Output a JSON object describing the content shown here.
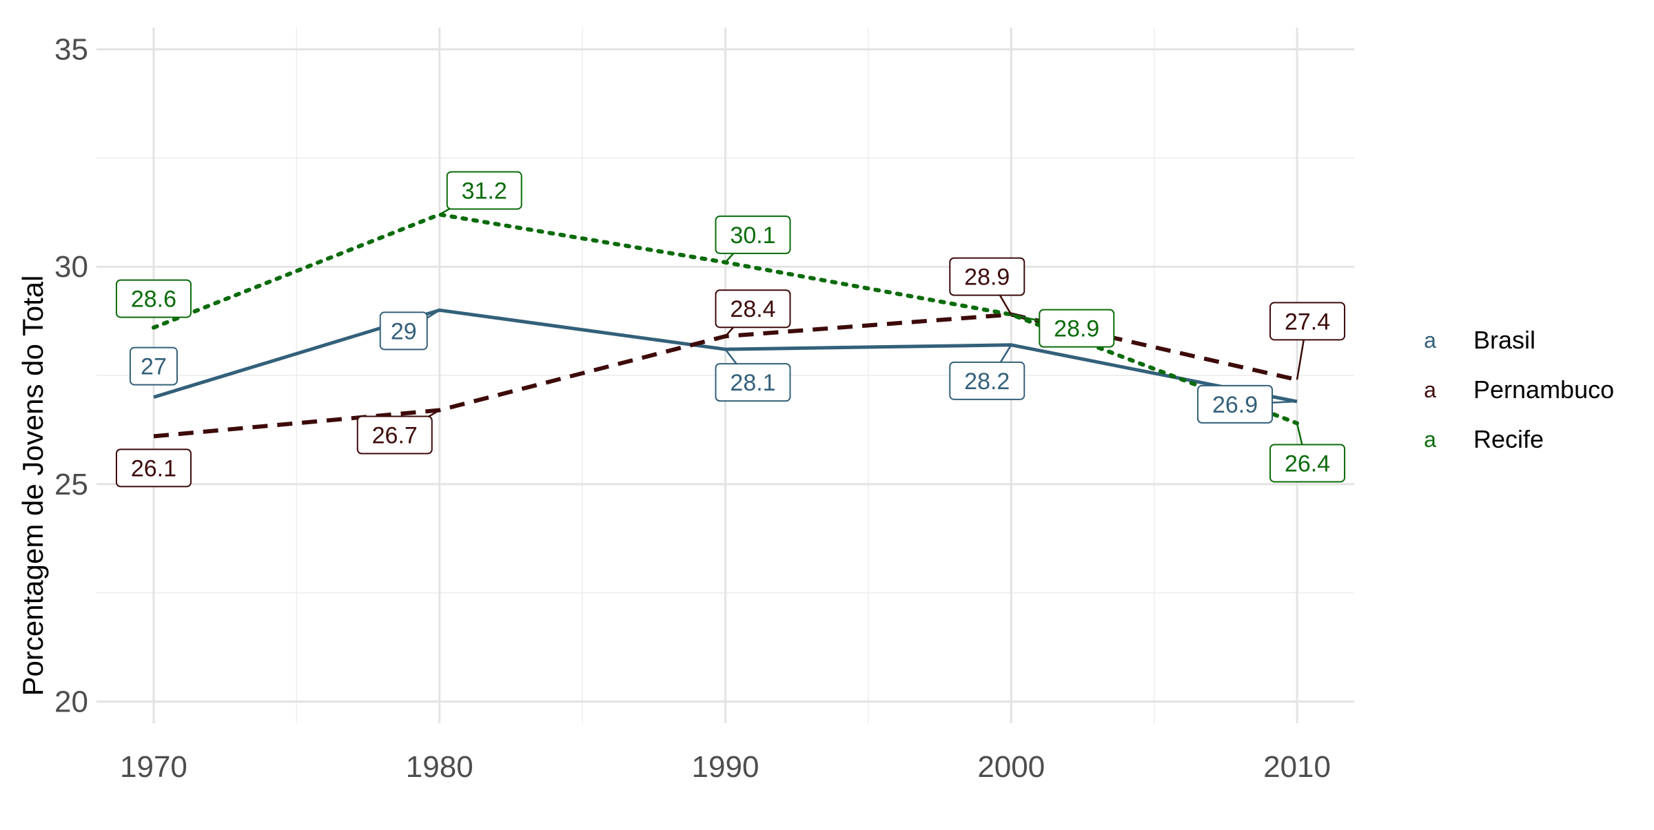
{
  "chart_data": {
    "type": "line",
    "title": "",
    "xlabel": "",
    "ylabel": "Porcentagem de Jovens do Total",
    "x": [
      1970,
      1980,
      1990,
      2000,
      2010
    ],
    "x_ticks": [
      1970,
      1980,
      1990,
      2000,
      2010
    ],
    "y_ticks": [
      20,
      25,
      30,
      35
    ],
    "xlim": [
      1968,
      2012
    ],
    "ylim": [
      19.5,
      35.5
    ],
    "grid": true,
    "legend_position": "right",
    "legend_key_glyph": "a",
    "series": [
      {
        "name": "Brasil",
        "values": [
          27.0,
          29.0,
          28.1,
          28.2,
          26.9
        ],
        "labels": [
          "27",
          "29",
          "28.1",
          "28.2",
          "26.9"
        ],
        "color": "#33607A",
        "line_style": "solid"
      },
      {
        "name": "Pernambuco",
        "values": [
          26.1,
          26.7,
          28.4,
          28.9,
          27.4
        ],
        "labels": [
          "26.1",
          "26.7",
          "28.4",
          "28.9",
          "27.4"
        ],
        "color": "#3D0A0A",
        "line_style": "dashed"
      },
      {
        "name": "Recife",
        "values": [
          28.6,
          31.2,
          30.1,
          28.9,
          26.4
        ],
        "labels": [
          "28.6",
          "31.2",
          "30.1",
          "28.9",
          "26.4"
        ],
        "color": "#0B6B0B",
        "line_style": "dotted"
      }
    ]
  }
}
